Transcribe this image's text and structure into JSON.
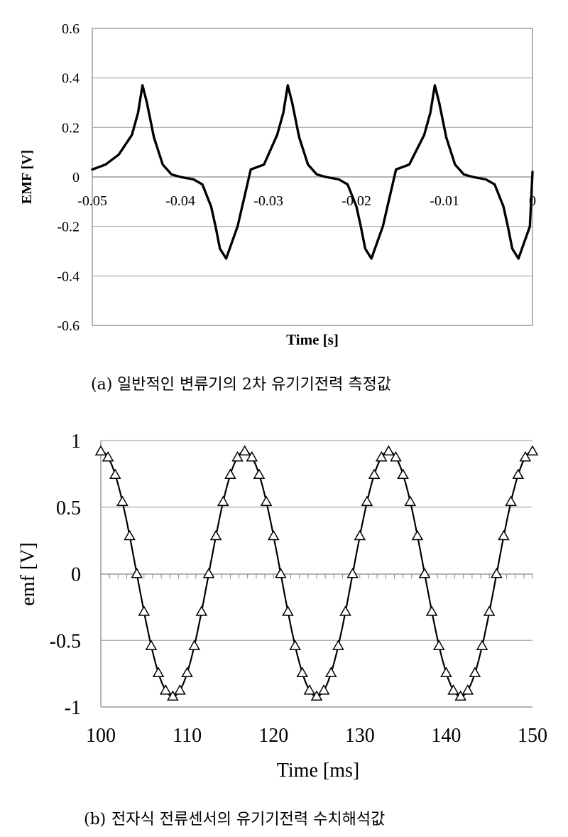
{
  "chart_data": [
    {
      "type": "line",
      "panel_label": "(a)",
      "caption": "일반적인 변류기의 2차 유기기전력 측정값",
      "xlabel": "Time [s]",
      "ylabel": "EMF [V]",
      "xlim": [
        -0.05,
        0
      ],
      "ylim": [
        -0.6,
        0.6
      ],
      "x_tick_labels": [
        "-0.05",
        "-0.04",
        "-0.03",
        "-0.02",
        "-0.01",
        "0"
      ],
      "y_tick_labels": [
        "0.6",
        "0.4",
        "0.2",
        "0",
        "-0.2",
        "-0.4",
        "-0.6"
      ],
      "grid": "horizontal",
      "series": [
        {
          "x": [
            -0.05,
            -0.0485,
            -0.047,
            -0.0455,
            -0.0448,
            -0.0443,
            -0.0438,
            -0.043,
            -0.042,
            -0.041,
            -0.04,
            -0.0385,
            -0.0375,
            -0.0365,
            -0.036,
            -0.0355,
            -0.0348,
            -0.0335,
            -0.032,
            -0.0305,
            -0.029,
            -0.0283,
            -0.0278,
            -0.0273,
            -0.0265,
            -0.0255,
            -0.0245,
            -0.0235,
            -0.022,
            -0.021,
            -0.02,
            -0.0195,
            -0.019,
            -0.0183,
            -0.017,
            -0.0155,
            -0.014,
            -0.0123,
            -0.0116,
            -0.0111,
            -0.0106,
            -0.0098,
            -0.0088,
            -0.0078,
            -0.0068,
            -0.0053,
            -0.0043,
            -0.0033,
            -0.0028,
            -0.0023,
            -0.0016,
            -0.0003,
            0.0
          ],
          "y": [
            0.03,
            0.05,
            0.09,
            0.17,
            0.26,
            0.37,
            0.3,
            0.16,
            0.05,
            0.01,
            0.0,
            -0.01,
            -0.03,
            -0.12,
            -0.2,
            -0.29,
            -0.33,
            -0.2,
            0.03,
            0.05,
            0.17,
            0.26,
            0.37,
            0.3,
            0.16,
            0.05,
            0.01,
            0.0,
            -0.01,
            -0.03,
            -0.12,
            -0.2,
            -0.29,
            -0.33,
            -0.2,
            0.03,
            0.05,
            0.17,
            0.26,
            0.37,
            0.3,
            0.16,
            0.05,
            0.01,
            0.0,
            -0.01,
            -0.03,
            -0.12,
            -0.2,
            -0.29,
            -0.33,
            -0.2,
            0.02
          ]
        }
      ]
    },
    {
      "type": "line",
      "panel_label": "(b)",
      "caption": "전자식 전류센서의 유기기전력 수치해석값",
      "xlabel": "Time [ms]",
      "ylabel": "emf [V]",
      "xlim": [
        100,
        150
      ],
      "ylim": [
        -1,
        1
      ],
      "x_tick_labels": [
        "100",
        "110",
        "120",
        "130",
        "140",
        "150"
      ],
      "y_tick_labels": [
        "1",
        "0.5",
        "0",
        "-0.5",
        "-1"
      ],
      "grid": "horizontal",
      "marker": "open-triangle",
      "series": [
        {
          "waveform": "sine",
          "amplitude": 0.92,
          "period_ms": 16.67,
          "peak_at_ms": 100,
          "x": [
            100.0,
            100.833,
            101.667,
            102.5,
            103.333,
            104.167,
            105.0,
            105.833,
            106.667,
            107.5,
            108.333,
            109.167,
            110.0,
            110.833,
            111.667,
            112.5,
            113.333,
            114.167,
            115.0,
            115.833,
            116.667,
            117.5,
            118.333,
            119.167,
            120.0,
            120.833,
            121.667,
            122.5,
            123.333,
            124.167,
            125.0,
            125.833,
            126.667,
            127.5,
            128.333,
            129.167,
            130.0,
            130.833,
            131.667,
            132.5,
            133.333,
            134.167,
            135.0,
            135.833,
            136.667,
            137.5,
            138.333,
            139.167,
            140.0,
            140.833,
            141.667,
            142.5,
            143.333,
            144.167,
            145.0,
            145.833,
            146.667,
            147.5,
            148.333,
            149.167,
            150.0
          ],
          "y": [
            0.92,
            0.875,
            0.744,
            0.541,
            0.284,
            0.0,
            -0.284,
            -0.541,
            -0.744,
            -0.875,
            -0.92,
            -0.875,
            -0.744,
            -0.541,
            -0.284,
            0.0,
            0.284,
            0.541,
            0.744,
            0.875,
            0.92,
            0.875,
            0.744,
            0.541,
            0.284,
            0.0,
            -0.284,
            -0.541,
            -0.744,
            -0.875,
            -0.92,
            -0.875,
            -0.744,
            -0.541,
            -0.284,
            0.0,
            0.284,
            0.541,
            0.744,
            0.875,
            0.92,
            0.875,
            0.744,
            0.541,
            0.284,
            0.0,
            -0.284,
            -0.541,
            -0.744,
            -0.875,
            -0.92,
            -0.875,
            -0.744,
            -0.541,
            -0.284,
            0.0,
            0.284,
            0.541,
            0.744,
            0.875,
            0.92
          ]
        }
      ]
    }
  ]
}
